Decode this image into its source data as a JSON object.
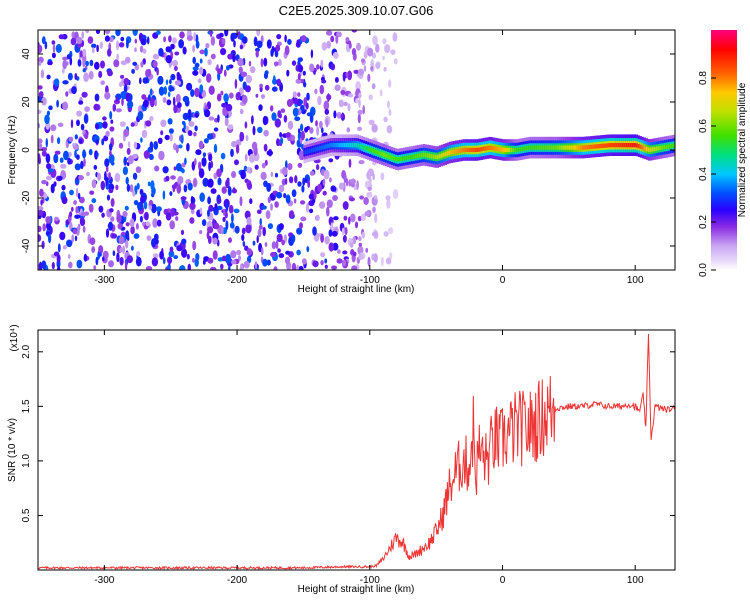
{
  "title": "C2E5.2025.309.10.07.G06",
  "chart_data": [
    {
      "type": "heatmap",
      "xlabel": "Height of straight line (km)",
      "ylabel": "Frequency (Hz)",
      "xlim": [
        -350,
        130
      ],
      "ylim": [
        -50,
        50
      ],
      "xticks": [
        -300,
        -200,
        -100,
        0,
        100
      ],
      "yticks": [
        -40,
        -20,
        0,
        20,
        40
      ],
      "colorbar": {
        "label": "Normalized spectral amplitude",
        "range": [
          0.0,
          1.0
        ],
        "ticks": [
          "0.0",
          "0.2",
          "0.4",
          "0.6",
          "0.8"
        ],
        "colors": [
          "#ffffff",
          "#c9a6f2",
          "#8a2be2",
          "#2a00ff",
          "#0050ff",
          "#00c8ff",
          "#00e080",
          "#40e000",
          "#c0e000",
          "#ffc800",
          "#ff6000",
          "#ff0000",
          "#ff0080"
        ]
      },
      "ridge": {
        "x": [
          -150,
          -130,
          -110,
          -100,
          -90,
          -80,
          -70,
          -60,
          -50,
          -40,
          -30,
          -20,
          -10,
          0,
          10,
          20,
          40,
          60,
          80,
          100,
          110,
          120,
          130
        ],
        "frequency": [
          -1,
          2,
          2,
          0,
          -2,
          -4,
          -3,
          -2,
          -3,
          -1,
          0,
          0,
          1,
          0,
          0,
          1,
          1,
          1,
          2,
          2,
          0,
          1,
          2
        ],
        "amplitude": [
          0.3,
          0.35,
          0.45,
          0.55,
          0.6,
          0.55,
          0.55,
          0.6,
          0.65,
          0.75,
          0.8,
          0.85,
          0.8,
          0.75,
          0.55,
          0.55,
          0.6,
          0.8,
          0.85,
          0.9,
          0.7,
          0.6,
          0.55
        ]
      },
      "noise_region": {
        "x": [
          -350,
          -95
        ],
        "amplitude": [
          0.05,
          0.3
        ]
      }
    },
    {
      "type": "line",
      "xlabel": "Height of straight line (km)",
      "ylabel": "SNR (10 * v/v)",
      "y_multiplier": "(x10⁴)",
      "xlim": [
        -350,
        130
      ],
      "ylim": [
        0,
        2.2
      ],
      "xticks": [
        -300,
        -200,
        -100,
        0,
        100
      ],
      "yticks": [
        "0.5",
        "1.0",
        "1.5",
        "2.0"
      ],
      "color": "#ee3333",
      "series": [
        {
          "x": [
            -350,
            -320,
            -300,
            -280,
            -250,
            -220,
            -200,
            -180,
            -150,
            -120,
            -100,
            -95,
            -90,
            -85,
            -80,
            -75,
            -70,
            -65,
            -60,
            -55,
            -50,
            -45,
            -40,
            -35,
            -30,
            -25,
            -22,
            -20,
            -18,
            -15,
            -12,
            -10,
            -8,
            -5,
            -2,
            0,
            5,
            10,
            15,
            20,
            25,
            30,
            35,
            40,
            50,
            60,
            70,
            80,
            90,
            95,
            100,
            103,
            106,
            108,
            110,
            112,
            115,
            120,
            125,
            130
          ],
          "values": [
            0.02,
            0.02,
            0.02,
            0.02,
            0.02,
            0.02,
            0.02,
            0.02,
            0.02,
            0.03,
            0.03,
            0.04,
            0.1,
            0.2,
            0.3,
            0.25,
            0.12,
            0.15,
            0.2,
            0.25,
            0.35,
            0.5,
            0.75,
            0.9,
            1.0,
            0.95,
            1.3,
            0.85,
            1.1,
            1.05,
            1.0,
            1.05,
            1.15,
            1.2,
            1.15,
            1.2,
            1.25,
            1.3,
            1.3,
            1.3,
            1.35,
            1.4,
            1.45,
            1.48,
            1.5,
            1.5,
            1.52,
            1.5,
            1.5,
            1.52,
            1.5,
            1.45,
            1.6,
            1.3,
            2.15,
            1.2,
            1.5,
            1.48,
            1.47,
            1.48
          ]
        }
      ]
    }
  ]
}
